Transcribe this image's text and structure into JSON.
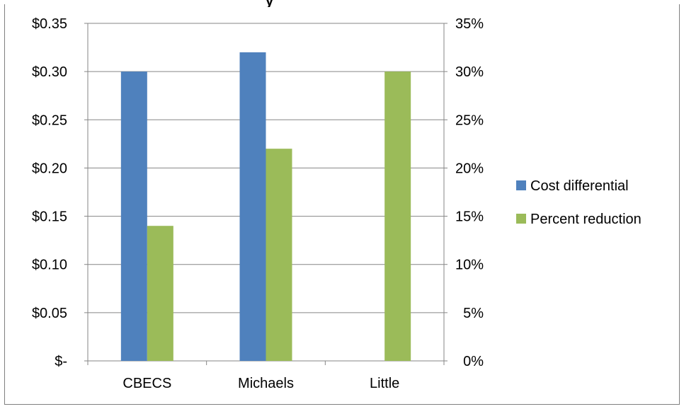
{
  "chart_data": {
    "type": "bar",
    "title_fragment": "y",
    "categories": [
      "CBECS",
      "Michaels",
      "Little"
    ],
    "series": [
      {
        "name": "Cost differential",
        "axis": "left",
        "color": "#4f81bd",
        "values": [
          0.3,
          0.32,
          null
        ]
      },
      {
        "name": "Percent reduction",
        "axis": "right",
        "color": "#9bbb59",
        "values": [
          0.14,
          0.22,
          0.3
        ]
      }
    ],
    "left_axis": {
      "ylim": [
        0,
        0.35
      ],
      "ticks": [
        0,
        0.05,
        0.1,
        0.15,
        0.2,
        0.25,
        0.3,
        0.35
      ],
      "tick_labels": [
        "$-",
        "$0.05",
        "$0.10",
        "$0.15",
        "$0.20",
        "$0.25",
        "$0.30",
        "$0.35"
      ]
    },
    "right_axis": {
      "ylim": [
        0,
        0.35
      ],
      "ticks": [
        0,
        0.05,
        0.1,
        0.15,
        0.2,
        0.25,
        0.3,
        0.35
      ],
      "tick_labels": [
        "0%",
        "5%",
        "10%",
        "15%",
        "20%",
        "25%",
        "30%",
        "35%"
      ]
    },
    "grid": true,
    "legend_position": "right"
  }
}
